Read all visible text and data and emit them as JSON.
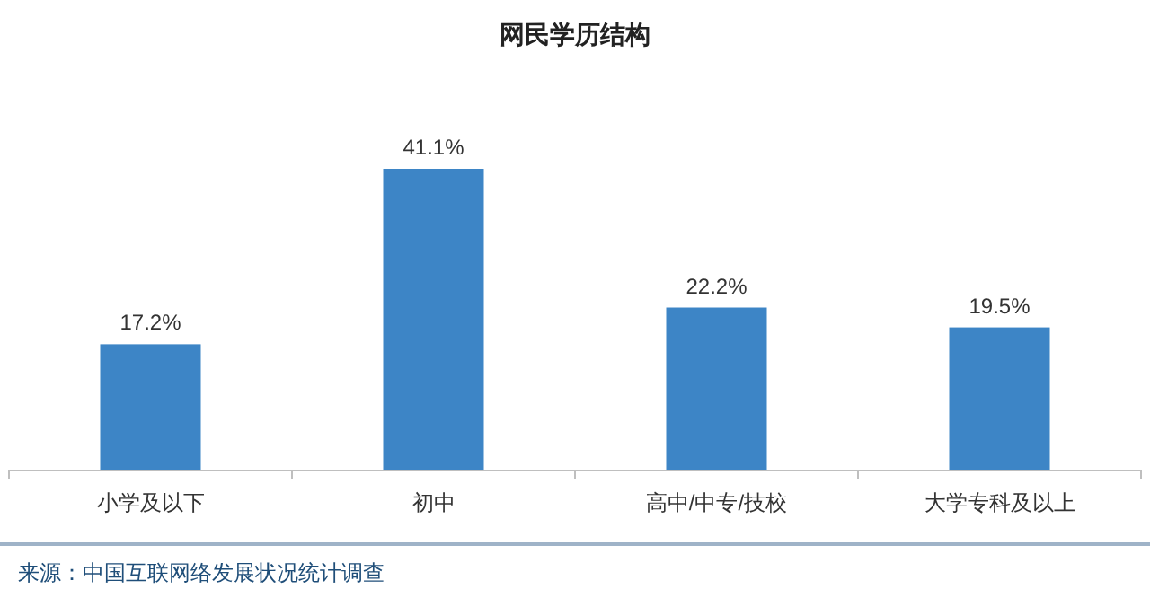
{
  "chart_data": {
    "type": "bar",
    "title": "网民学历结构",
    "categories": [
      "小学及以下",
      "初中",
      "高中/中专/技校",
      "大学专科及以上"
    ],
    "values": [
      17.2,
      41.1,
      22.2,
      19.5
    ],
    "value_labels": [
      "17.2%",
      "41.1%",
      "22.2%",
      "19.5%"
    ],
    "color": "#3d85c6",
    "annotations": [
      "来源：中国互联网络发展状况统计调查"
    ]
  }
}
